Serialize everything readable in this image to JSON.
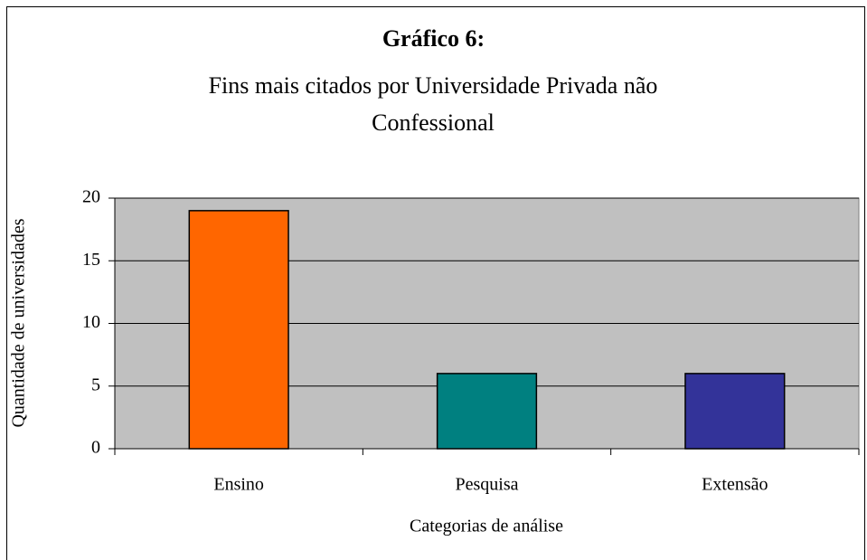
{
  "chart_data": {
    "type": "bar",
    "title": "Gráfico 6:",
    "subtitle": "Fins mais citados por Universidade Privada não Confessional",
    "xlabel": "Categorias de análise",
    "ylabel": "Quantidade de universidades",
    "categories": [
      "Ensino",
      "Pesquisa",
      "Extensão"
    ],
    "values": [
      19,
      6,
      6
    ],
    "colors": [
      "#ff6600",
      "#008080",
      "#333399"
    ],
    "ylim": [
      0,
      20
    ],
    "yticks": [
      0,
      5,
      10,
      15,
      20
    ],
    "grid": true
  }
}
